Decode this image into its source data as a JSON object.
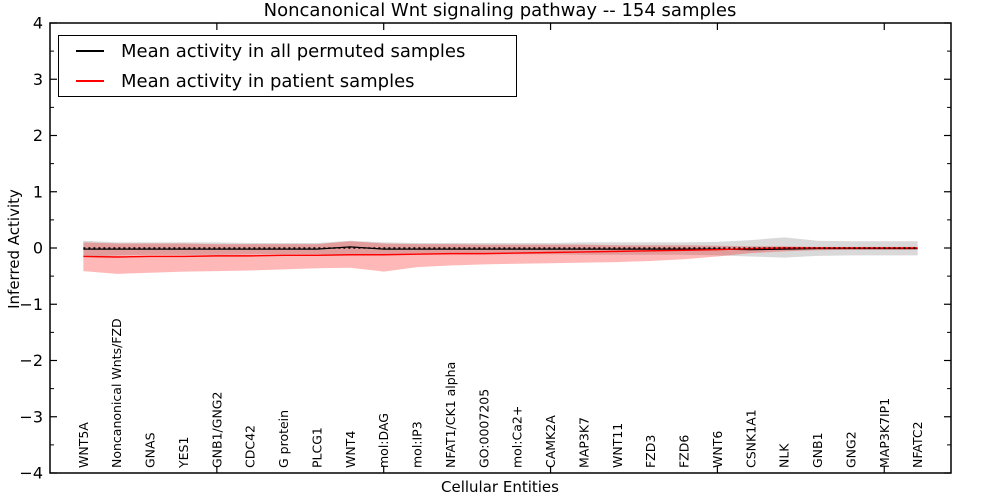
{
  "title": "Noncanonical Wnt signaling pathway -- 154 samples",
  "legend": {
    "items": [
      {
        "label": "Mean activity in all permuted samples",
        "color": "#000000"
      },
      {
        "label": "Mean activity in patient samples",
        "color": "#ff0000"
      }
    ]
  },
  "chart_data": {
    "type": "line",
    "title": "Noncanonical Wnt signaling pathway -- 154 samples",
    "xlabel": "Cellular Entities",
    "ylabel": "Inferred Activity",
    "ylim": [
      -4,
      4
    ],
    "ytick_labels": [
      "−4",
      "−3",
      "−2",
      "−1",
      "0",
      "1",
      "2",
      "3",
      "4"
    ],
    "yticks": [
      -4,
      -3,
      -2,
      -1,
      0,
      1,
      2,
      3,
      4
    ],
    "y_minor_step": 0.5,
    "x_major_ticks": [
      5,
      10,
      15,
      20,
      25
    ],
    "grid": false,
    "legend_position": "upper left",
    "zero_line": {
      "value": 0,
      "style": "dotted",
      "color": "#000000"
    },
    "colors": {
      "permuted_line": "#000000",
      "patient_line": "#ff0000",
      "permuted_band": "rgba(120,120,120,0.28)",
      "patient_band": "rgba(255,0,0,0.28)"
    },
    "categories": [
      "WNT5A",
      "Noncanonical Wnts/FZD",
      "GNAS",
      "YES1",
      "GNB1/GNG2",
      "CDC42",
      "G protein",
      "PLCG1",
      "WNT4",
      "mol:DAG",
      "mol:IP3",
      "NFAT1/CK1 alpha",
      "GO:0007205",
      "mol:Ca2+",
      "CAMK2A",
      "MAP3K7",
      "WNT11",
      "FZD3",
      "FZD6",
      "WNT6",
      "CSNK1A1",
      "NLK",
      "GNB1",
      "GNG2",
      "MAP3K7IP1",
      "NFATC2"
    ],
    "series": [
      {
        "name": "Mean activity in all permuted samples",
        "values": [
          -0.02,
          -0.02,
          -0.02,
          -0.02,
          -0.02,
          -0.02,
          -0.02,
          -0.02,
          0.02,
          -0.02,
          -0.02,
          -0.02,
          -0.02,
          -0.02,
          -0.02,
          -0.02,
          -0.02,
          -0.02,
          -0.02,
          -0.02,
          -0.03,
          -0.02,
          -0.01,
          -0.01,
          -0.01,
          -0.01
        ]
      },
      {
        "name": "Mean activity in patient samples",
        "values": [
          -0.15,
          -0.16,
          -0.15,
          -0.15,
          -0.14,
          -0.14,
          -0.13,
          -0.13,
          -0.12,
          -0.12,
          -0.11,
          -0.1,
          -0.1,
          -0.09,
          -0.08,
          -0.07,
          -0.06,
          -0.05,
          -0.04,
          -0.03,
          -0.01,
          0.0,
          0.0,
          0.0,
          0.0,
          0.0
        ]
      }
    ],
    "bands": [
      {
        "name": "permuted std band",
        "upper": [
          0.13,
          0.1,
          0.1,
          0.1,
          0.1,
          0.09,
          0.09,
          0.09,
          0.13,
          0.1,
          0.09,
          0.09,
          0.09,
          0.09,
          0.09,
          0.1,
          0.1,
          0.1,
          0.1,
          0.11,
          0.14,
          0.19,
          0.13,
          0.12,
          0.12,
          0.12
        ],
        "lower": [
          -0.16,
          -0.13,
          -0.12,
          -0.12,
          -0.12,
          -0.11,
          -0.11,
          -0.11,
          -0.13,
          -0.12,
          -0.11,
          -0.11,
          -0.11,
          -0.11,
          -0.11,
          -0.12,
          -0.12,
          -0.12,
          -0.12,
          -0.13,
          -0.15,
          -0.17,
          -0.14,
          -0.13,
          -0.13,
          -0.13
        ]
      },
      {
        "name": "patient std band",
        "upper": [
          0.1,
          0.08,
          0.08,
          0.08,
          0.07,
          0.07,
          0.07,
          0.07,
          0.12,
          0.08,
          0.07,
          0.07,
          0.06,
          0.06,
          0.06,
          0.06,
          0.05,
          0.05,
          0.05,
          0.04,
          0.03,
          0.03,
          0.02,
          0.02,
          0.02,
          0.02
        ],
        "lower": [
          -0.41,
          -0.46,
          -0.44,
          -0.42,
          -0.41,
          -0.4,
          -0.38,
          -0.36,
          -0.35,
          -0.42,
          -0.34,
          -0.31,
          -0.29,
          -0.28,
          -0.27,
          -0.26,
          -0.25,
          -0.23,
          -0.2,
          -0.15,
          -0.09,
          -0.06,
          -0.04,
          -0.03,
          -0.03,
          -0.03
        ]
      }
    ]
  }
}
